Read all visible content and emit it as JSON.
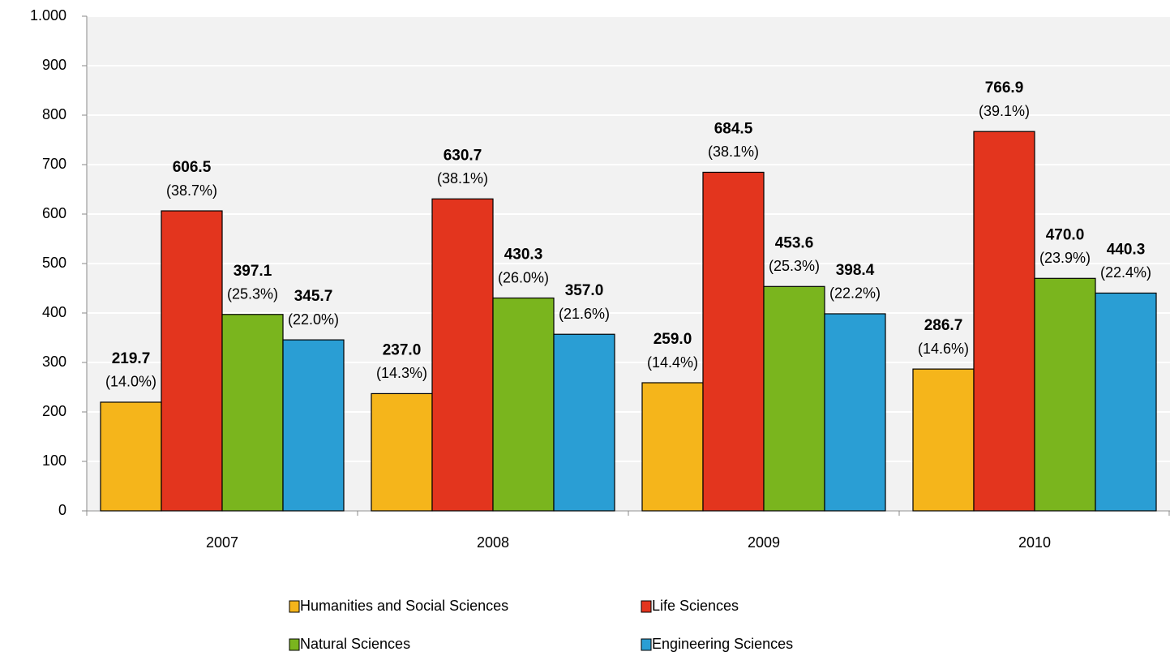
{
  "chart_data": {
    "type": "bar",
    "categories": [
      "2007",
      "2008",
      "2009",
      "2010"
    ],
    "series": [
      {
        "name": "Humanities and Social Sciences",
        "color": "#f5b51b",
        "values": [
          219.7,
          237.0,
          259.0,
          286.7
        ],
        "value_labels": [
          "219.7",
          "237.0",
          "259.0",
          "286.7"
        ],
        "share_labels": [
          "(14.0%)",
          "(14.3%)",
          "(14.4%)",
          "(14.6%)"
        ]
      },
      {
        "name": "Life Sciences",
        "color": "#e3351e",
        "values": [
          606.5,
          630.7,
          684.5,
          766.9
        ],
        "value_labels": [
          "606.5",
          "630.7",
          "684.5",
          "766.9"
        ],
        "share_labels": [
          "(38.7%)",
          "(38.1%)",
          "(38.1%)",
          "(39.1%)"
        ]
      },
      {
        "name": "Natural Sciences",
        "color": "#7ab51e",
        "values": [
          397.1,
          430.3,
          453.6,
          470.0
        ],
        "value_labels": [
          "397.1",
          "430.3",
          "453.6",
          "470.0"
        ],
        "share_labels": [
          "(25.3%)",
          "(26.0%)",
          "(25.3%)",
          "(23.9%)"
        ]
      },
      {
        "name": "Engineering Sciences",
        "color": "#2a9ed4",
        "values": [
          345.7,
          357.0,
          398.4,
          440.3
        ],
        "value_labels": [
          "345.7",
          "357.0",
          "398.4",
          "440.3"
        ],
        "share_labels": [
          "(22.0%)",
          "(21.6%)",
          "(22.2%)",
          "(22.4%)"
        ]
      }
    ],
    "ylim": [
      0,
      1000
    ],
    "yticks": [
      0,
      100,
      200,
      300,
      400,
      500,
      600,
      700,
      800,
      900,
      {
        "value": 1000,
        "label": "1.000"
      }
    ],
    "grid": true,
    "legend": "bottom"
  }
}
